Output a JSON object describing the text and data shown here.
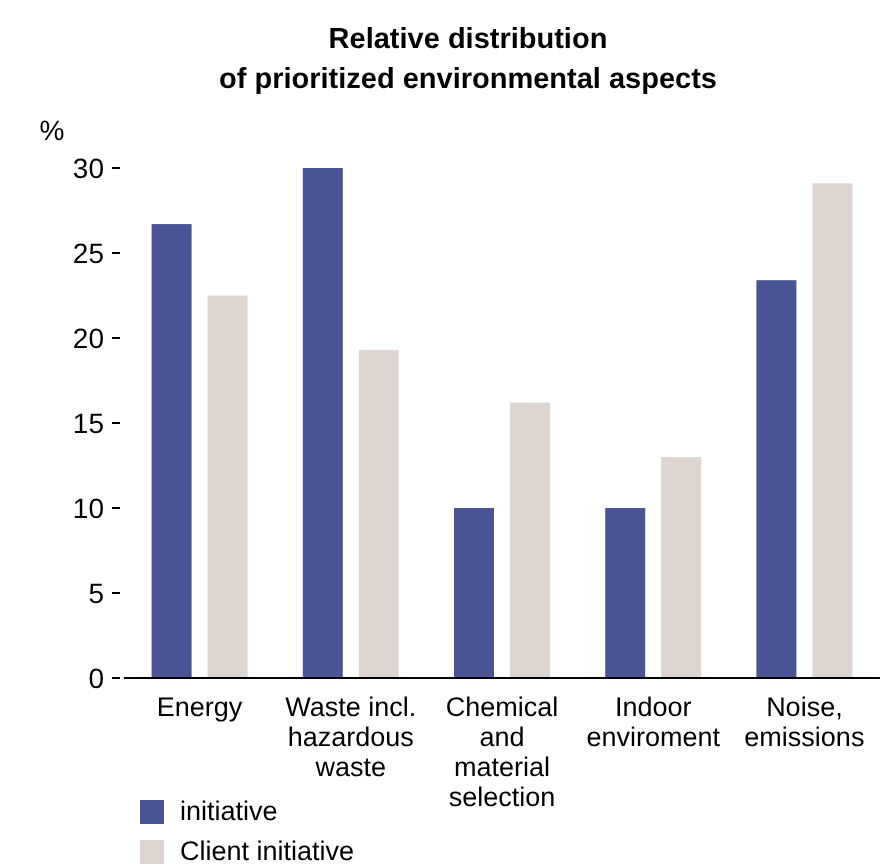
{
  "chart_data": {
    "type": "bar",
    "title": "Relative distribution\nof prioritized environmental aspects",
    "ylabel": "%",
    "categories": [
      "Energy",
      "Waste incl. hazardous waste",
      "Chemical and material selection",
      "Indoor enviroment",
      "Noise, emissions"
    ],
    "series": [
      {
        "name": "initiative",
        "color": "#4a5494",
        "values": [
          26.7,
          30,
          10,
          10,
          23.4
        ]
      },
      {
        "name": "Client initiative",
        "color": "#ddd5cf",
        "values": [
          22.5,
          19.3,
          16.2,
          13,
          29.1
        ]
      }
    ],
    "ylim": [
      0,
      30
    ],
    "yticks": [
      0,
      5,
      10,
      15,
      20,
      25,
      30
    ],
    "grid": false,
    "legend": "bottom left"
  }
}
